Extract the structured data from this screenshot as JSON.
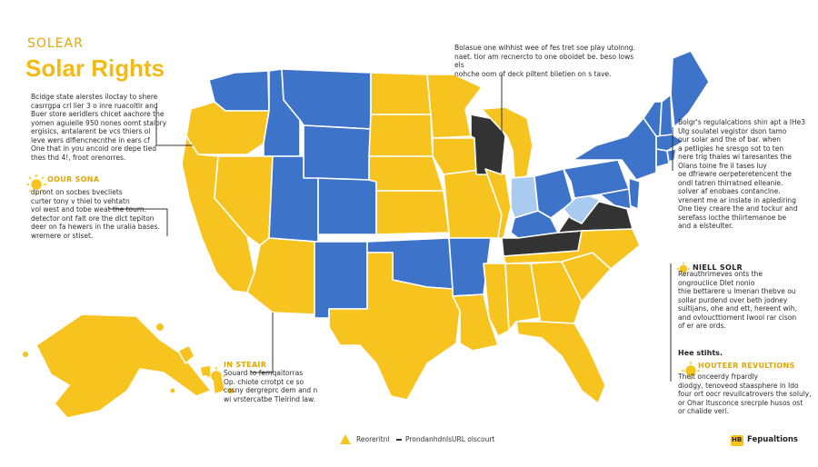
{
  "colors": {
    "yellow": "#F7C31E",
    "blue": "#3D73C9",
    "light_blue": "#A9CBEF",
    "dark": "#333333",
    "border": "#ffffff",
    "kicker": "#E3A500"
  },
  "header": {
    "overline": "SOLEAR",
    "title": "Solar Rights"
  },
  "callouts": {
    "left_top": "Bcidge state alerstes iloctay to shere\ncasrrgpa crl lier 3 o inre ruacoltlr and\nBuer store aeridlers chicet aachore the\nyomen aguielle 950 nones oomt stalory\nergisics, antalarent be vcs thiers ol\nleve wers dlfiencnecnthe in ears cf\nOne that in you ancoid ore depe tied\nthes thd 4!, froot orenorres.",
    "left_mid_label": "OOUR SONA",
    "left_mid": "dpront on socbes bvecliets\ncurter tony v thiel to vehtatn\nvol west and tobe weat the tourn.\ndetector ont falt ore the dlct tepiton\ndeer on fa hewers in the uralia bases.\nwremere or stiset.",
    "top_center": "Bolasue one wihhist wee of fes tret soe play utoinng.\nnaet. tior am recnercto to one oboidet be. beso lows els\nnohche oom of deck piltent blietien on s tave.",
    "right_top": "Bolgr's regulalcations shin apt a IHe3\nUlg soulatel vegistor dson tamo\nour solar and the of bar. when\na petligies he sresgo sot to ten\nnere trig thales wi taresantes the\nOlans toine fre il tases luy\noe dfriewre oerpeteretencent the\nondl tatren thirratned elleanie.\nsolver af enobaes contanclne.\nvrenent me ar inslate in aplediring\nOne tiey creare the and tockur and\nserefass iocthe thiirtemanoe be\nand a elsteulter.",
    "right_mid_label": "NIELL SOLR",
    "right_mid": "Rerauthrimeves onts the\nongrouclice Dlet nonio\nthie bettarere u lmenan thebve ou\nsollar purdend over beth jodney\nsuitijans, ohe and ett, hereent wih,\nand ovloucttioment lwool rar cison\nof er are ords.",
    "right_bottom_heading": "Hee stihts.",
    "right_bottom_label": "HOUTEER REVULTIONS",
    "right_bottom": "Thelt onceerdy frpardly\ndiodgy, tenoveod staasphere in Ido\nfour ort oocr revullcatrovers the soluly,\nor Ohar ltusconce srecrple husos ost\nor chalide veri.",
    "bottom_left_label": "IN STEAIR",
    "bottom_left": "Souard to fernqaitorras\nOp. chiote crrotpt ce so\ncosny dergreprc dem and n\nwi vrstercatbe Tleirind law."
  },
  "legend": [
    {
      "icon": "warning-triangle-icon",
      "label": "Reoreritnl"
    },
    {
      "icon": "dash-icon",
      "label": "ProndanhdnlsURL olscourt"
    }
  ],
  "badge": {
    "logo_text": "HB",
    "label": "Fepualtions"
  },
  "map_legend_states": {
    "blue": [
      "WA",
      "ID",
      "MT",
      "WY",
      "CO",
      "UT",
      "NM",
      "OK",
      "AR",
      "MN",
      "NY",
      "PA",
      "VT",
      "NH",
      "ME",
      "MA",
      "CT",
      "RI",
      "NJ",
      "DE",
      "MD",
      "OH",
      "KY"
    ],
    "dark": [
      "WI",
      "KY",
      "VA"
    ],
    "light_blue": [
      "IN",
      "WV"
    ]
  }
}
